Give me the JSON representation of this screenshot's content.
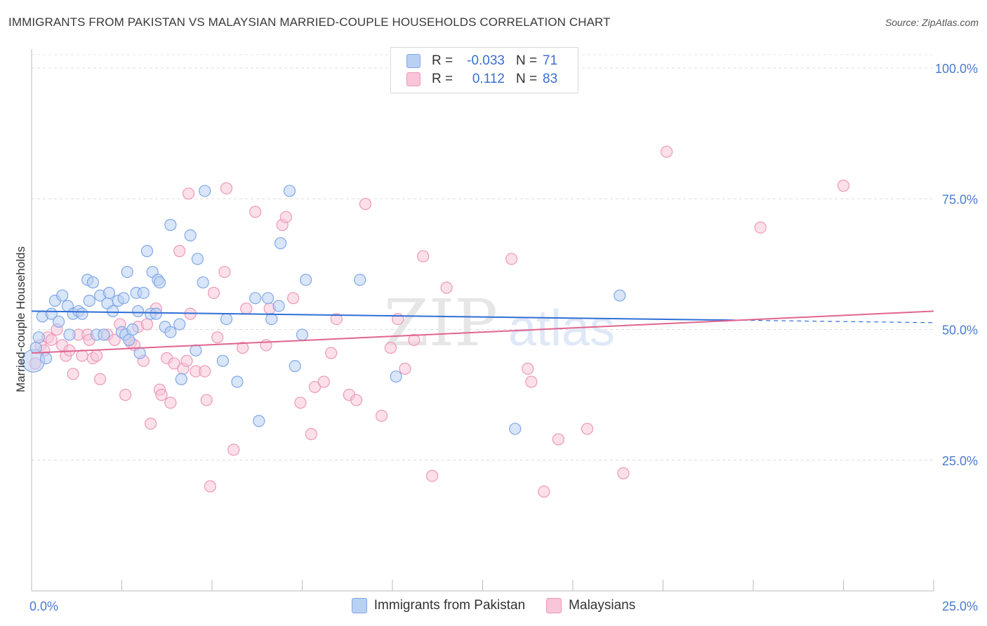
{
  "header": {
    "title": "IMMIGRANTS FROM PAKISTAN VS MALAYSIAN MARRIED-COUPLE HOUSEHOLDS CORRELATION CHART",
    "source": "Source: ZipAtlas.com"
  },
  "legend": {
    "rows": [
      {
        "r_label": "R =",
        "r_value": "-0.033",
        "n_label": "N =",
        "n_value": "71"
      },
      {
        "r_label": "R =",
        "r_value": "0.112",
        "n_label": "N =",
        "n_value": "83"
      }
    ]
  },
  "colors": {
    "blue": "#7fa8e8",
    "blue_fill": "#b9d0f3",
    "blue_line": "#2f6fd6",
    "pink": "#ee98b8",
    "pink_fill": "#f8c6d8",
    "pink_line": "#e0658f",
    "tick_label": "#4a7bd0"
  },
  "watermark": {
    "zip": "ZIP",
    "atlas": "atlas"
  },
  "chart_data": {
    "type": "scatter",
    "xlabel": "",
    "ylabel": "Married-couple Households",
    "xlim": [
      0,
      25
    ],
    "ylim": [
      0,
      105
    ],
    "x_tick_labels": [
      {
        "value": 0,
        "label": "0.0%"
      },
      {
        "value": 25,
        "label": "25.0%"
      }
    ],
    "y_tick_labels": [
      {
        "value": 25,
        "label": "25.0%"
      },
      {
        "value": 50,
        "label": "50.0%"
      },
      {
        "value": 75,
        "label": "75.0%"
      },
      {
        "value": 100,
        "label": "100.0%"
      }
    ],
    "grid": true,
    "legend_position": "top-center",
    "series": [
      {
        "name": "Immigrants from Pakistan",
        "color": "blue",
        "trend": {
          "x": [
            0,
            25
          ],
          "y": [
            53.5,
            51.3
          ],
          "solid_until": 19.5
        },
        "points": [
          [
            0.05,
            44.0
          ],
          [
            0.12,
            46.5
          ],
          [
            0.2,
            48.5
          ],
          [
            0.3,
            52.5
          ],
          [
            0.4,
            44.5
          ],
          [
            0.55,
            53.0
          ],
          [
            0.65,
            55.5
          ],
          [
            0.75,
            51.5
          ],
          [
            0.85,
            56.5
          ],
          [
            1.0,
            54.5
          ],
          [
            1.05,
            49.0
          ],
          [
            1.15,
            53.0
          ],
          [
            1.3,
            53.5
          ],
          [
            1.4,
            53.0
          ],
          [
            1.55,
            59.5
          ],
          [
            1.6,
            55.5
          ],
          [
            1.7,
            59.0
          ],
          [
            1.8,
            49.0
          ],
          [
            1.9,
            56.5
          ],
          [
            2.0,
            49.0
          ],
          [
            2.1,
            55.0
          ],
          [
            2.15,
            57.0
          ],
          [
            2.25,
            53.5
          ],
          [
            2.4,
            55.5
          ],
          [
            2.5,
            49.5
          ],
          [
            2.55,
            56.0
          ],
          [
            2.6,
            49.0
          ],
          [
            2.65,
            61.0
          ],
          [
            2.7,
            48.0
          ],
          [
            2.8,
            50.0
          ],
          [
            2.9,
            57.0
          ],
          [
            2.95,
            53.5
          ],
          [
            3.0,
            45.5
          ],
          [
            3.1,
            57.0
          ],
          [
            3.2,
            65.0
          ],
          [
            3.3,
            53.0
          ],
          [
            3.35,
            61.0
          ],
          [
            3.45,
            53.0
          ],
          [
            3.5,
            59.5
          ],
          [
            3.55,
            59.0
          ],
          [
            3.7,
            50.5
          ],
          [
            3.85,
            49.5
          ],
          [
            3.85,
            70.0
          ],
          [
            4.1,
            51.0
          ],
          [
            4.15,
            40.5
          ],
          [
            4.4,
            68.0
          ],
          [
            4.55,
            46.0
          ],
          [
            4.6,
            63.5
          ],
          [
            4.75,
            59.0
          ],
          [
            4.8,
            76.5
          ],
          [
            5.3,
            44.0
          ],
          [
            5.4,
            52.0
          ],
          [
            5.7,
            40.0
          ],
          [
            6.2,
            56.0
          ],
          [
            6.3,
            32.5
          ],
          [
            6.55,
            56.0
          ],
          [
            6.65,
            52.0
          ],
          [
            6.85,
            54.5
          ],
          [
            6.9,
            66.5
          ],
          [
            7.15,
            76.5
          ],
          [
            7.3,
            43.0
          ],
          [
            7.5,
            49.0
          ],
          [
            7.6,
            59.5
          ],
          [
            9.1,
            59.5
          ],
          [
            10.1,
            41.0
          ],
          [
            13.4,
            31.0
          ],
          [
            16.3,
            56.5
          ]
        ]
      },
      {
        "name": "Malaysians",
        "color": "pink",
        "trend": {
          "x": [
            0,
            25
          ],
          "y": [
            45.5,
            53.5
          ]
        },
        "points": [
          [
            0.1,
            43.5
          ],
          [
            0.25,
            47.0
          ],
          [
            0.35,
            46.0
          ],
          [
            0.45,
            48.5
          ],
          [
            0.55,
            48.0
          ],
          [
            0.7,
            50.0
          ],
          [
            0.85,
            47.0
          ],
          [
            0.95,
            45.0
          ],
          [
            1.05,
            46.0
          ],
          [
            1.15,
            41.5
          ],
          [
            1.3,
            49.0
          ],
          [
            1.4,
            45.0
          ],
          [
            1.55,
            49.0
          ],
          [
            1.6,
            48.0
          ],
          [
            1.7,
            44.5
          ],
          [
            1.8,
            45.0
          ],
          [
            1.9,
            40.5
          ],
          [
            2.1,
            49.0
          ],
          [
            2.3,
            48.0
          ],
          [
            2.45,
            51.0
          ],
          [
            2.6,
            37.5
          ],
          [
            2.75,
            47.5
          ],
          [
            2.85,
            47.0
          ],
          [
            2.95,
            50.5
          ],
          [
            3.1,
            44.0
          ],
          [
            3.2,
            51.0
          ],
          [
            3.3,
            32.0
          ],
          [
            3.45,
            54.0
          ],
          [
            3.55,
            38.5
          ],
          [
            3.6,
            37.5
          ],
          [
            3.75,
            44.5
          ],
          [
            3.85,
            36.0
          ],
          [
            3.95,
            43.5
          ],
          [
            4.1,
            65.0
          ],
          [
            4.2,
            42.5
          ],
          [
            4.3,
            44.0
          ],
          [
            4.35,
            76.0
          ],
          [
            4.4,
            53.0
          ],
          [
            4.55,
            42.0
          ],
          [
            4.8,
            42.0
          ],
          [
            4.85,
            36.5
          ],
          [
            4.95,
            20.0
          ],
          [
            5.05,
            57.0
          ],
          [
            5.15,
            48.5
          ],
          [
            5.35,
            61.0
          ],
          [
            5.4,
            77.0
          ],
          [
            5.6,
            27.0
          ],
          [
            5.85,
            46.5
          ],
          [
            5.95,
            54.0
          ],
          [
            6.2,
            72.5
          ],
          [
            6.5,
            47.0
          ],
          [
            6.6,
            54.0
          ],
          [
            6.95,
            70.0
          ],
          [
            7.05,
            71.5
          ],
          [
            7.25,
            56.0
          ],
          [
            7.45,
            36.0
          ],
          [
            7.75,
            30.0
          ],
          [
            7.85,
            39.0
          ],
          [
            8.1,
            40.0
          ],
          [
            8.3,
            45.5
          ],
          [
            8.45,
            52.0
          ],
          [
            8.8,
            37.5
          ],
          [
            9.0,
            36.5
          ],
          [
            9.25,
            74.0
          ],
          [
            9.7,
            33.5
          ],
          [
            9.95,
            46.5
          ],
          [
            10.15,
            52.0
          ],
          [
            10.35,
            42.5
          ],
          [
            10.6,
            48.0
          ],
          [
            10.85,
            64.0
          ],
          [
            11.1,
            22.0
          ],
          [
            11.5,
            58.0
          ],
          [
            13.3,
            63.5
          ],
          [
            13.75,
            42.5
          ],
          [
            13.85,
            40.0
          ],
          [
            14.2,
            19.0
          ],
          [
            14.6,
            29.0
          ],
          [
            15.4,
            31.0
          ],
          [
            16.4,
            22.5
          ],
          [
            17.6,
            84.0
          ],
          [
            20.2,
            69.5
          ],
          [
            22.5,
            77.5
          ]
        ]
      }
    ]
  }
}
